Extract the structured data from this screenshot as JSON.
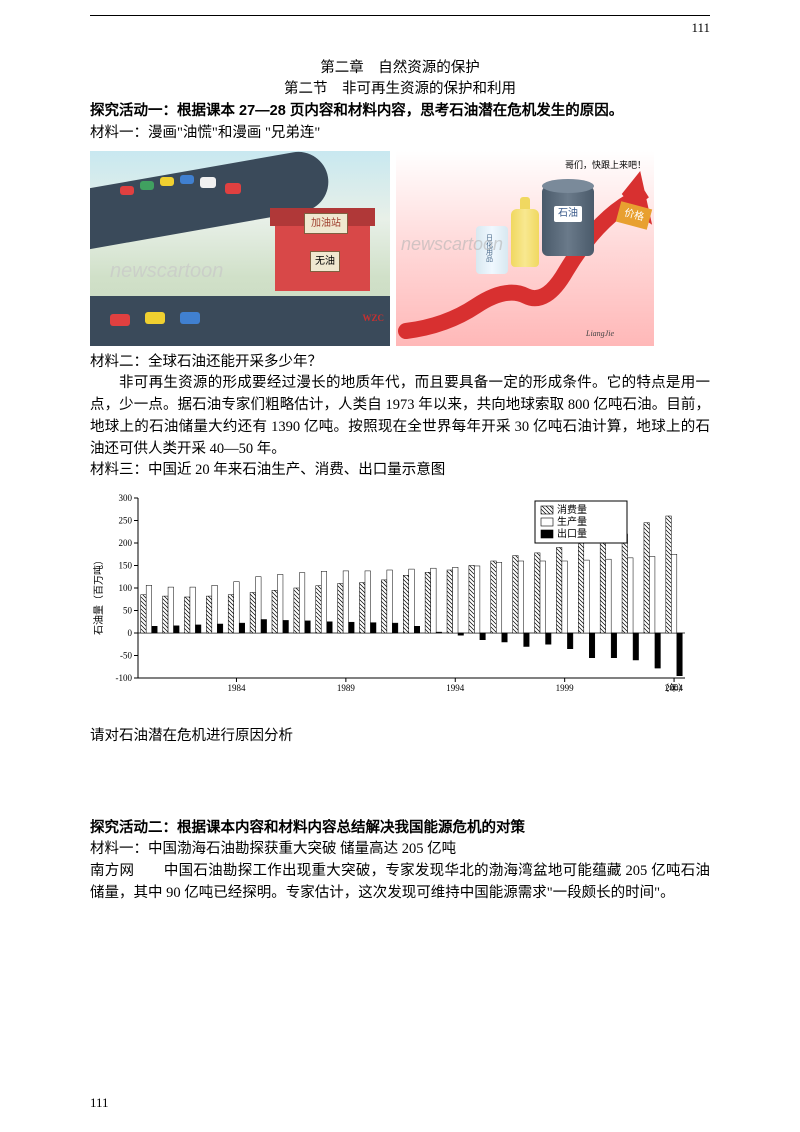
{
  "page_number_top": "111",
  "page_number_bottom": "111",
  "chapter_title": "第二章　自然资源的保护",
  "section_title": "第二节　非可再生资源的保护和利用",
  "activity1_title": "探究活动一：根据课本 27—28 页内容和材料内容，思考石油潜在危机发生的原因。",
  "material1_label": "材料一：漫画\"油慌\"和漫画 \"兄弟连\"",
  "cartoon_left": {
    "station_sign": "加油站",
    "no_oil": "无油",
    "watermark": "newscartoon",
    "signature": "WZC"
  },
  "cartoon_right": {
    "speech": "哥们，快跟上来吧！",
    "barrel_label": "石油",
    "bottle2_label": "日化用品",
    "price_label": "价格",
    "watermark": "newscartoon",
    "signature": "LiangJie"
  },
  "material2_label": "材料二：全球石油还能开采多少年？",
  "material2_para": "非可再生资源的形成要经过漫长的地质年代，而且要具备一定的形成条件。它的特点是用一点，少一点。据石油专家们粗略估计，人类自 1973 年以来，共向地球索取 800 亿吨石油。目前，地球上的石油储量大约还有 1390 亿吨。按照现在全世界每年开采 30 亿吨石油计算，地球上的石油还可供人类开采 40—50 年。",
  "material3_label": "材料三：中国近 20 年来石油生产、消费、出口量示意图",
  "chart": {
    "type": "bar",
    "y_label": "石油量（百万吨）",
    "y_min": -100,
    "y_max": 300,
    "y_ticks": [
      -100,
      -50,
      0,
      50,
      100,
      150,
      200,
      250,
      300
    ],
    "x_label_suffix": "（年）",
    "x_tick_labels": [
      "1984",
      "1989",
      "1994",
      "1999",
      "2004"
    ],
    "x_tick_positions": [
      4,
      9,
      14,
      19,
      24
    ],
    "legend": [
      "消费量",
      "生产量",
      "出口量"
    ],
    "legend_patterns": [
      "hatch",
      "white",
      "black"
    ],
    "years": [
      1980,
      1981,
      1982,
      1983,
      1984,
      1985,
      1986,
      1987,
      1988,
      1989,
      1990,
      1991,
      1992,
      1993,
      1994,
      1995,
      1996,
      1997,
      1998,
      1999,
      2000,
      2001,
      2002,
      2003,
      2004
    ],
    "consumption": [
      85,
      82,
      80,
      82,
      85,
      90,
      95,
      100,
      105,
      110,
      112,
      118,
      128,
      135,
      140,
      150,
      160,
      172,
      178,
      190,
      200,
      205,
      220,
      245,
      260
    ],
    "production": [
      106,
      102,
      102,
      106,
      114,
      125,
      130,
      134,
      137,
      138,
      138,
      140,
      142,
      144,
      146,
      149,
      157,
      160,
      160,
      160,
      162,
      164,
      167,
      170,
      175
    ],
    "export": [
      15,
      16,
      18,
      20,
      22,
      30,
      28,
      27,
      25,
      24,
      23,
      22,
      15,
      2,
      -5,
      -15,
      -20,
      -30,
      -25,
      -35,
      -55,
      -55,
      -60,
      -78,
      -95
    ],
    "colors": {
      "axis": "#000000",
      "hatch_fill": "#ffffff",
      "hatch_stroke": "#000000",
      "white_fill": "#ffffff",
      "black_fill": "#000000",
      "background": "#ffffff"
    },
    "bar_group_width": 19,
    "bar_width": 5.5
  },
  "analysis_prompt": "请对石油潜在危机进行原因分析",
  "activity2_title": "探究活动二：根据课本内容和材料内容总结解决我国能源危机的对策",
  "material_a2_line1": "材料一：中国渤海石油勘探获重大突破 储量高达 205 亿吨",
  "material_a2_line2_prefix": "南方网",
  "material_a2_line2_body": "　　中国石油勘探工作出现重大突破，专家发现华北的渤海湾盆地可能蕴藏 205 亿吨石油储量，其中 90 亿吨已经探明。专家估计，这次发现可维持中国能源需求\"一段颇长的时间\"。"
}
